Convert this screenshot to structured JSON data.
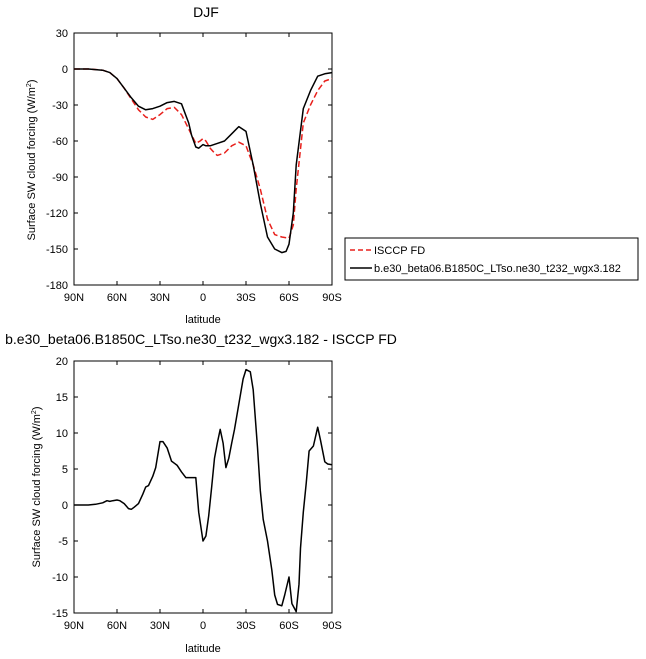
{
  "chart_data": [
    {
      "type": "line",
      "title": "DJF",
      "xlabel": "latitude",
      "ylabel": "Surface SW cloud forcing (W/m",
      "ylabel_sup": "2",
      "ylabel_tail": ")",
      "xlim": [
        90,
        -90
      ],
      "ylim": [
        -180,
        30
      ],
      "xticks": [
        90,
        60,
        30,
        0,
        -30,
        -60,
        -90
      ],
      "xtick_labels": [
        "90N",
        "60N",
        "30N",
        "0",
        "30S",
        "60S",
        "90S"
      ],
      "yticks": [
        30,
        0,
        -30,
        -60,
        -90,
        -120,
        -150,
        -180
      ],
      "ytick_labels": [
        "30",
        "0",
        "-30",
        "-60",
        "-90",
        "-120",
        "-150",
        "-180"
      ],
      "legend_position": "right",
      "series": [
        {
          "name": "ISCCP FD",
          "color": "#e8201c",
          "dash": true,
          "x": [
            90,
            80,
            70,
            65,
            60,
            55,
            50,
            45,
            40,
            35,
            30,
            25,
            20,
            15,
            10,
            5,
            2,
            0,
            -2,
            -5,
            -8,
            -10,
            -15,
            -20,
            -25,
            -30,
            -35,
            -40,
            -45,
            -50,
            -55,
            -60,
            -63,
            -65,
            -70,
            -75,
            -80,
            -85,
            -90
          ],
          "values": [
            0,
            0,
            -1,
            -3,
            -8,
            -16,
            -25,
            -34,
            -40,
            -42,
            -38,
            -33,
            -32,
            -38,
            -50,
            -62,
            -60,
            -58,
            -60,
            -66,
            -70,
            -72,
            -70,
            -64,
            -61,
            -64,
            -80,
            -100,
            -125,
            -138,
            -140,
            -141,
            -130,
            -100,
            -45,
            -30,
            -18,
            -10,
            -8
          ]
        },
        {
          "name": "b.e30_beta06.B1850C_LTso.ne30_t232_wgx3.182",
          "color": "#000000",
          "dash": false,
          "x": [
            90,
            80,
            70,
            65,
            60,
            55,
            50,
            45,
            40,
            35,
            30,
            25,
            20,
            15,
            10,
            8,
            5,
            3,
            0,
            -2,
            -5,
            -10,
            -15,
            -20,
            -25,
            -30,
            -35,
            -40,
            -45,
            -50,
            -55,
            -58,
            -60,
            -63,
            -65,
            -70,
            -75,
            -80,
            -85,
            -90
          ],
          "values": [
            0,
            0,
            -1,
            -3,
            -8,
            -16,
            -24,
            -31,
            -34,
            -33,
            -31,
            -28,
            -27,
            -29,
            -45,
            -55,
            -65,
            -66,
            -63,
            -64,
            -64,
            -62,
            -60,
            -54,
            -48,
            -52,
            -80,
            -112,
            -140,
            -150,
            -153,
            -152,
            -146,
            -120,
            -80,
            -33,
            -18,
            -6,
            -4,
            -3
          ]
        }
      ]
    },
    {
      "type": "line",
      "title": "b.e30_beta06.B1850C_LTso.ne30_t232_wgx3.182 - ISCCP FD",
      "xlabel": "latitude",
      "ylabel": "Surface SW cloud forcing (W/m",
      "ylabel_sup": "2",
      "ylabel_tail": ")",
      "xlim": [
        90,
        -90
      ],
      "ylim": [
        -15,
        20
      ],
      "xticks": [
        90,
        60,
        30,
        0,
        -30,
        -60,
        -90
      ],
      "xtick_labels": [
        "90N",
        "60N",
        "30N",
        "0",
        "30S",
        "60S",
        "90S"
      ],
      "yticks": [
        20,
        15,
        10,
        5,
        0,
        -5,
        -10,
        -15
      ],
      "ytick_labels": [
        "20",
        "15",
        "10",
        "5",
        "0",
        "-5",
        "-10",
        "-15"
      ],
      "series": [
        {
          "color": "#000000",
          "x": [
            90,
            85,
            80,
            75,
            70,
            67,
            65,
            63,
            60,
            58,
            55,
            52,
            50,
            48,
            45,
            42,
            40,
            38,
            35,
            33,
            30,
            28,
            25,
            22,
            20,
            18,
            15,
            12,
            10,
            8,
            5,
            3,
            0,
            -2,
            -4,
            -6,
            -8,
            -10,
            -12,
            -14,
            -16,
            -18,
            -20,
            -22,
            -25,
            -28,
            -30,
            -33,
            -35,
            -38,
            -40,
            -42,
            -45,
            -48,
            -50,
            -52,
            -55,
            -57,
            -60,
            -62,
            -65,
            -67,
            -68,
            -70,
            -72,
            -74,
            -77,
            -80,
            -82,
            -85,
            -87,
            -90
          ],
          "values": [
            0,
            0,
            0,
            0.1,
            0.3,
            0.6,
            0.5,
            0.6,
            0.7,
            0.6,
            0.2,
            -0.5,
            -0.6,
            -0.3,
            0.2,
            1.5,
            2.5,
            2.7,
            4,
            5.2,
            8.8,
            8.8,
            7.9,
            6.1,
            5.8,
            5.5,
            4.6,
            3.8,
            3.8,
            3.8,
            3.8,
            -1,
            -5,
            -4.3,
            -1.5,
            2.4,
            6.5,
            8.6,
            10.5,
            8.6,
            5.2,
            6.5,
            8.6,
            10.5,
            14,
            17.5,
            18.8,
            18.5,
            16,
            8,
            2,
            -2,
            -5,
            -9,
            -12.5,
            -13.8,
            -14,
            -12.5,
            -10,
            -13.7,
            -14.8,
            -11,
            -6,
            -1,
            3,
            7.5,
            8.2,
            10.8,
            9,
            6,
            5.7,
            5.6
          ]
        }
      ]
    }
  ]
}
